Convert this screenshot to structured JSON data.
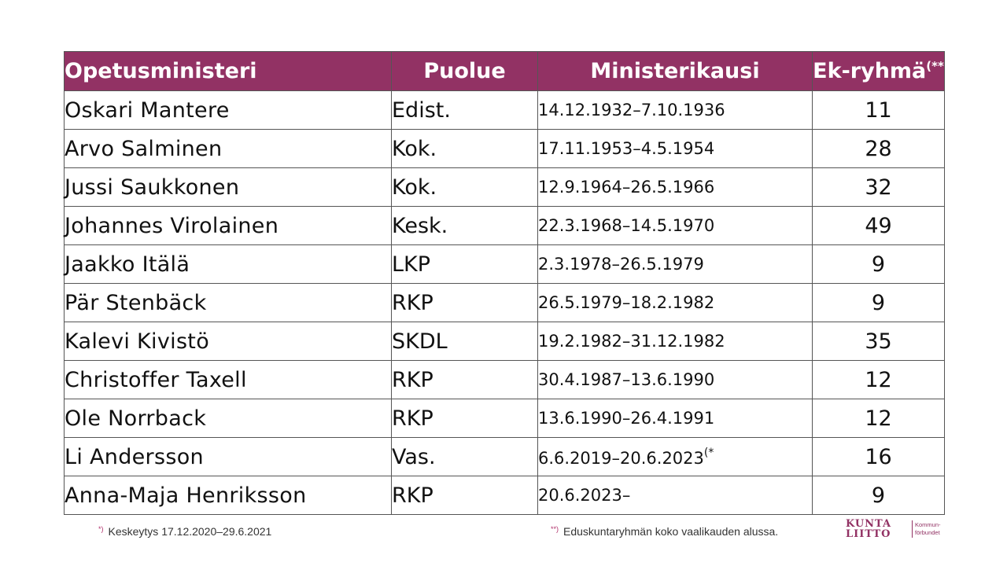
{
  "table": {
    "headers": {
      "name": "Opetusministeri",
      "party": "Puolue",
      "term": "Ministerikausi",
      "group": "Ek-ryhmä",
      "group_note": "(**"
    },
    "rows": [
      {
        "name": "Oskari Mantere",
        "party": "Edist.",
        "term": "14.12.1932–7.10.1936",
        "term_note": "",
        "group": "11"
      },
      {
        "name": "Arvo Salminen",
        "party": "Kok.",
        "term": "17.11.1953–4.5.1954",
        "term_note": "",
        "group": "28"
      },
      {
        "name": "Jussi Saukkonen",
        "party": "Kok.",
        "term": "12.9.1964–26.5.1966",
        "term_note": "",
        "group": "32"
      },
      {
        "name": "Johannes Virolainen",
        "party": "Kesk.",
        "term": "22.3.1968–14.5.1970",
        "term_note": "",
        "group": "49"
      },
      {
        "name": "Jaakko Itälä",
        "party": "LKP",
        "term": "2.3.1978–26.5.1979",
        "term_note": "",
        "group": "9"
      },
      {
        "name": "Pär Stenbäck",
        "party": "RKP",
        "term": "26.5.1979–18.2.1982",
        "term_note": "",
        "group": "9"
      },
      {
        "name": "Kalevi Kivistö",
        "party": "SKDL",
        "term": "19.2.1982–31.12.1982",
        "term_note": "",
        "group": "35"
      },
      {
        "name": "Christoffer Taxell",
        "party": "RKP",
        "term": "30.4.1987–13.6.1990",
        "term_note": "",
        "group": "12"
      },
      {
        "name": "Ole Norrback",
        "party": "RKP",
        "term": "13.6.1990–26.4.1991",
        "term_note": "",
        "group": "12"
      },
      {
        "name": "Li Andersson",
        "party": "Vas.",
        "term": "6.6.2019–20.6.2023",
        "term_note": "(*",
        "group": "16"
      },
      {
        "name": "Anna-Maja Henriksson",
        "party": "RKP",
        "term": "20.6.2023–",
        "term_note": "",
        "group": "9"
      }
    ]
  },
  "footnotes": [
    {
      "marker": "*)",
      "text": "Keskeytys 17.12.2020–29.6.2021"
    },
    {
      "marker": "**)",
      "text": "Eduskuntaryhmän koko vaalikauden alussa."
    }
  ],
  "logo": {
    "line1": "KUNTA",
    "line2": "LIITTO",
    "sub1": "Kommun-",
    "sub2": "förbundet",
    "color": "#923264"
  },
  "colors": {
    "header_bg": "#923264",
    "header_text": "#ffffff"
  }
}
